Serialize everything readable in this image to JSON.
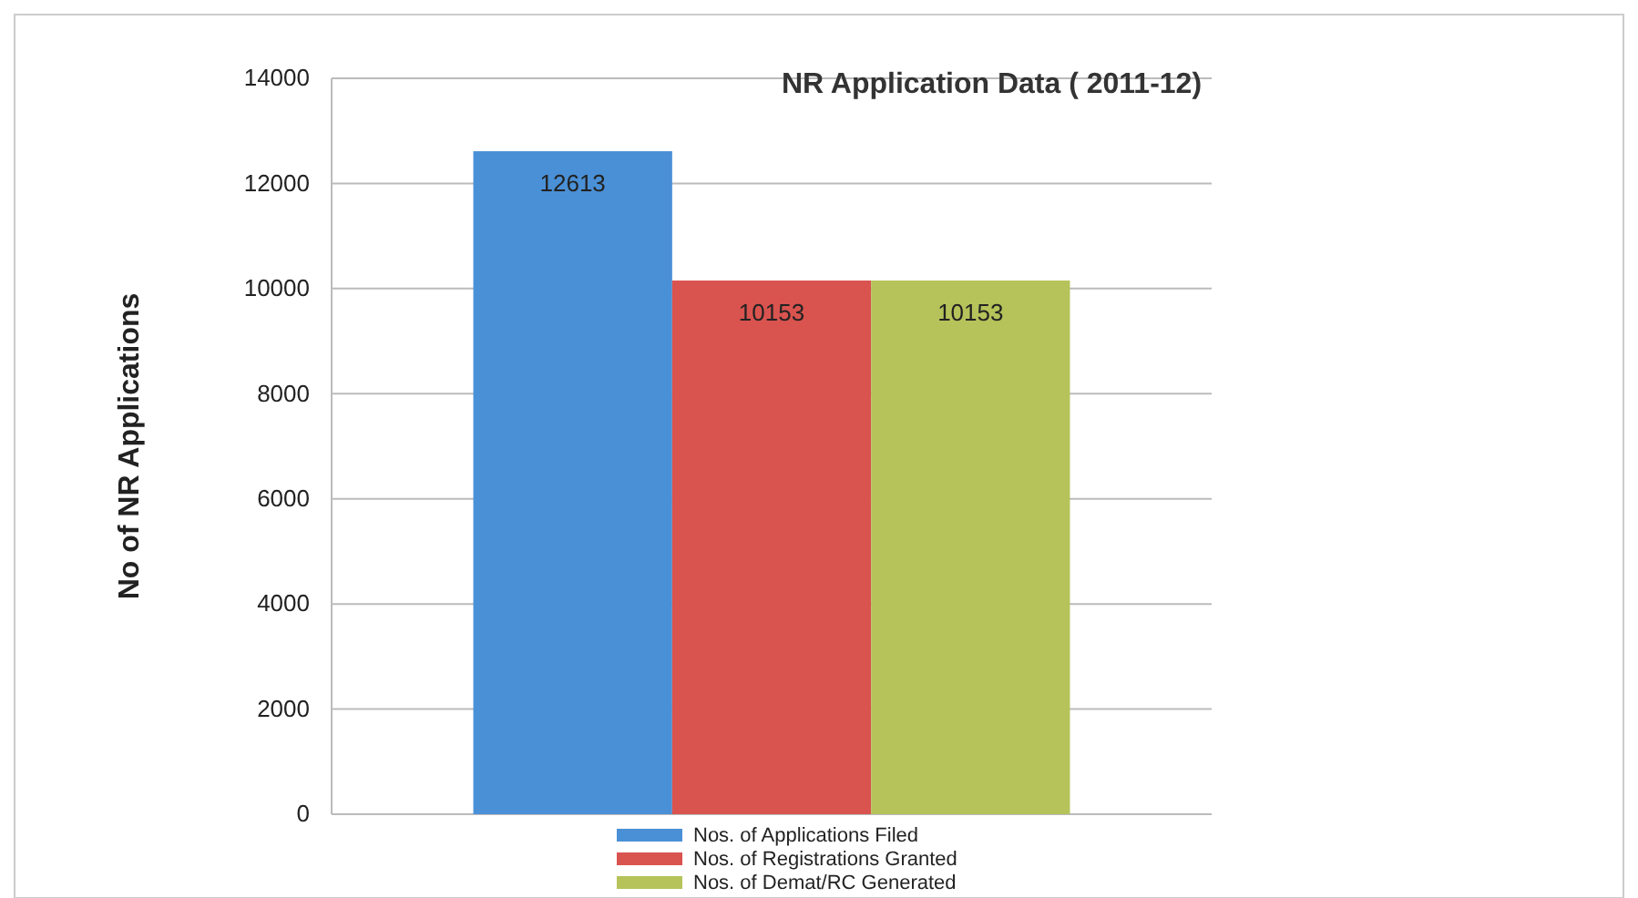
{
  "chart_data": {
    "type": "bar",
    "title": "NR Application Data ( 2011-12)",
    "ylabel": "No of NR Applications",
    "categories": [
      null
    ],
    "series": [
      {
        "name": "Nos. of Applications Filed",
        "color": "#4a90d6",
        "values": [
          12613
        ]
      },
      {
        "name": "Nos. of Registrations Granted",
        "color": "#d9534f",
        "values": [
          10153
        ]
      },
      {
        "name": "Nos. of Demat/RC Generated",
        "color": "#b5c35a",
        "values": [
          10153
        ]
      }
    ],
    "ylim": [
      0,
      14000
    ],
    "yticks": [
      0,
      2000,
      4000,
      6000,
      8000,
      10000,
      12000,
      14000
    ],
    "grid": "y",
    "legend": "bottom",
    "data_labels": true
  }
}
